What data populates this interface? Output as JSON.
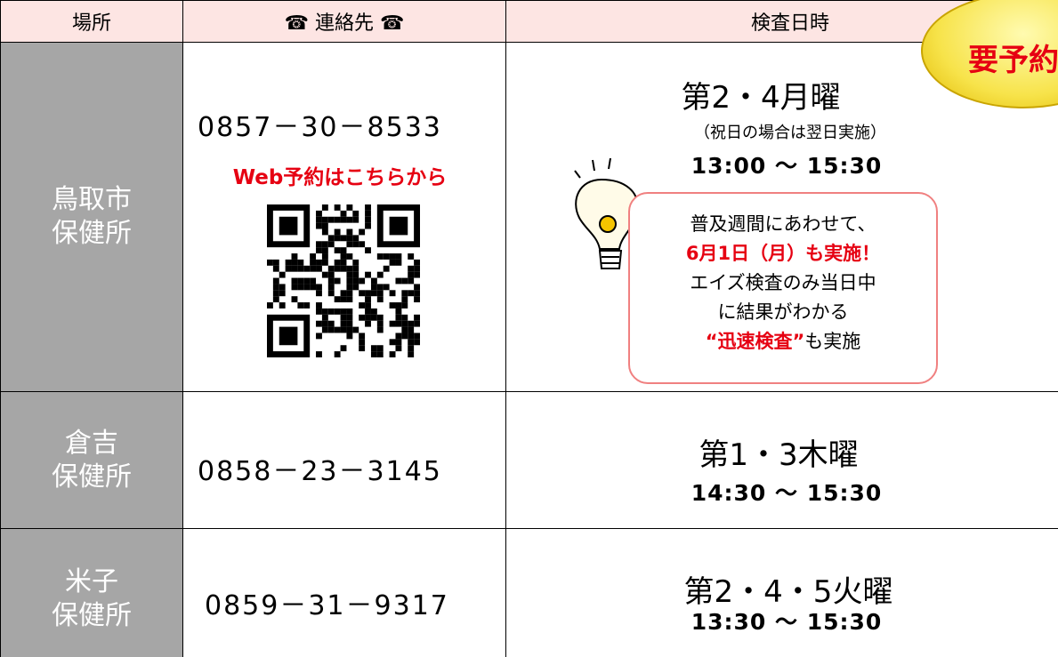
{
  "header": {
    "place": "場所",
    "contact": "☎ 連絡先 ☎",
    "datetime": "検査日時",
    "badge": "要予約"
  },
  "rows": [
    {
      "place": [
        "鳥取市",
        "保健所"
      ],
      "phone": "0857－30－8533",
      "web": "Web予約はこちらから",
      "day": "第2・4月曜",
      "note": "（祝日の場合は翌日実施）",
      "time": "13:00 ～ 15:30",
      "callout": {
        "line1": "普及週間にあわせて、",
        "highlight": "6月1日（月）も実施！",
        "line3": "エイズ検査のみ当日中",
        "line4": "に結果がわかる",
        "emphasis": "“迅速検査”",
        "tail": "も実施"
      }
    },
    {
      "place": [
        "倉吉",
        "保健所"
      ],
      "phone": "0858－23－3145",
      "day": "第1・3木曜",
      "time": "14:30 ～ 15:30"
    },
    {
      "place": [
        "米子",
        "保健所"
      ],
      "phone": "0859－31－9317",
      "day": "第2・4・5火曜",
      "time": "13:30 ～ 15:30"
    }
  ]
}
